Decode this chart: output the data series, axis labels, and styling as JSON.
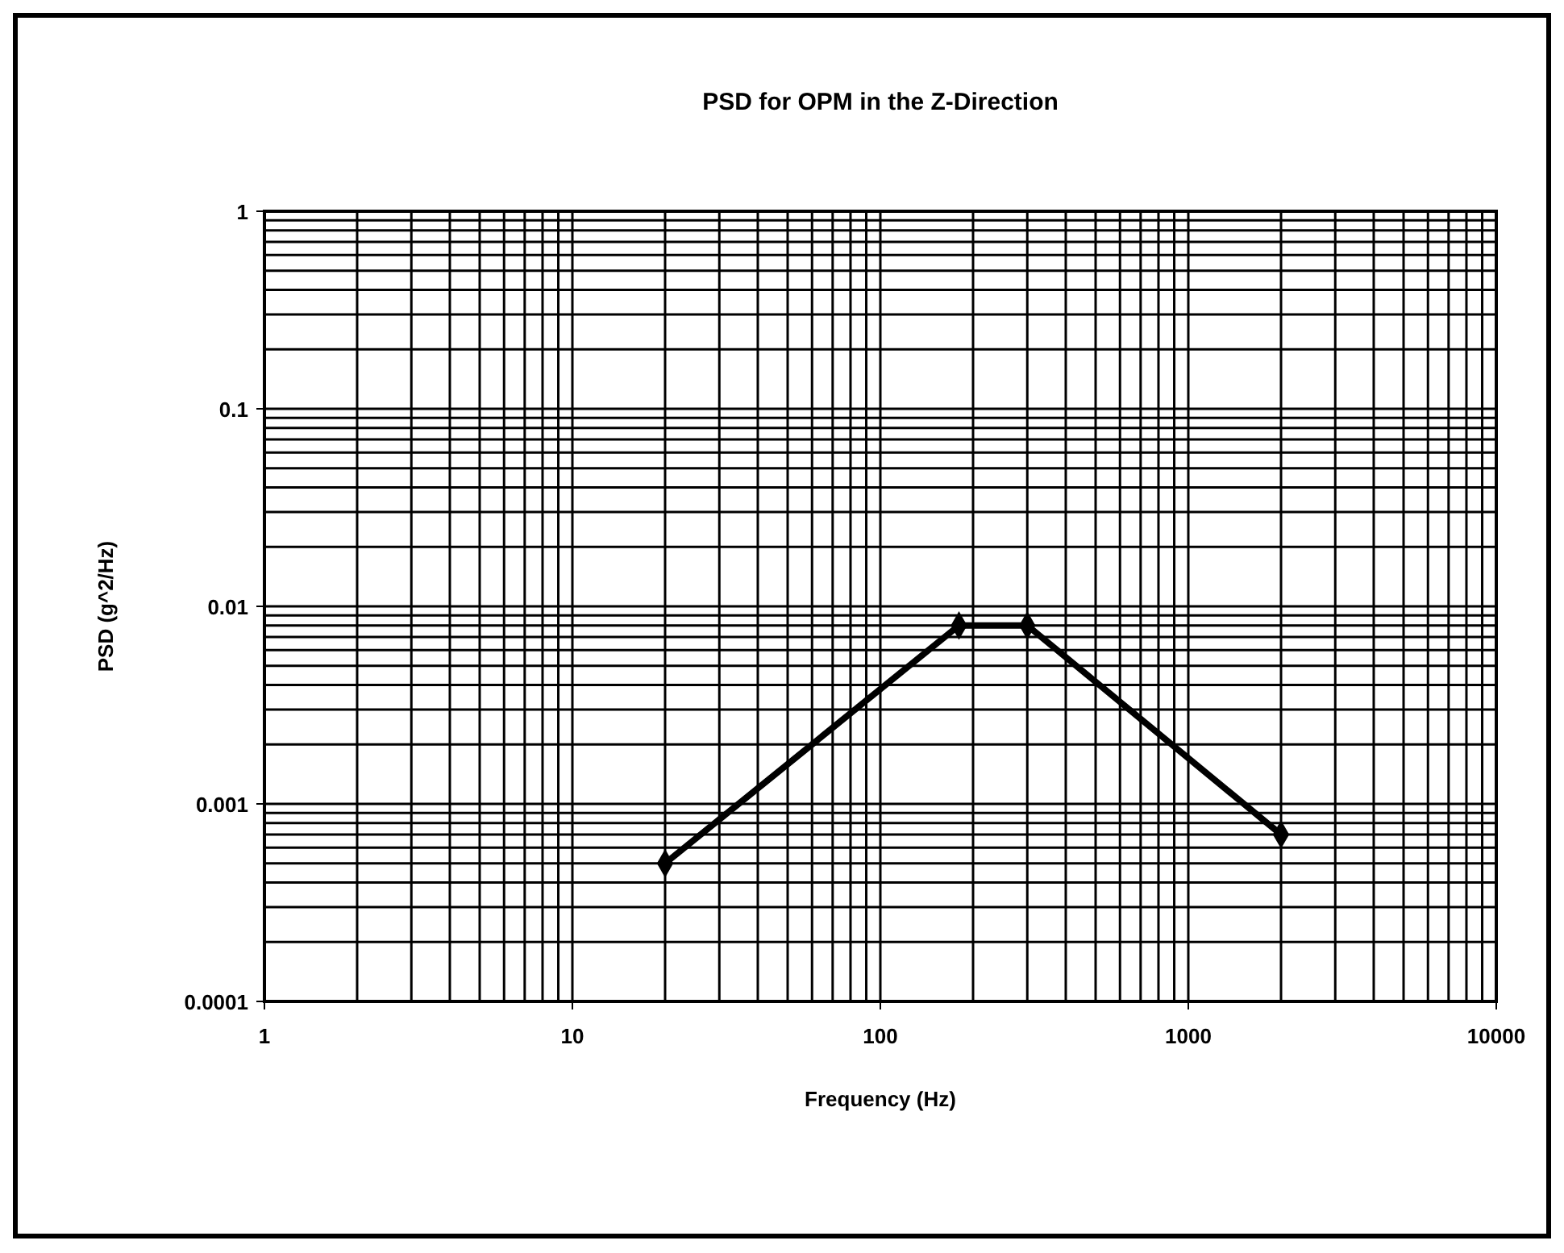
{
  "chart_data": {
    "type": "line",
    "title": "PSD for OPM in the Z-Direction",
    "xlabel": "Frequency (Hz)",
    "ylabel": "PSD (g^2/Hz)",
    "log": "xy",
    "grid": true,
    "marker": "diamond",
    "line_style": "solid",
    "x": [
      20,
      180,
      300,
      2000
    ],
    "series": [
      {
        "color": "#000000",
        "values": [
          0.0005,
          0.008,
          0.008,
          0.0007
        ]
      }
    ],
    "xlim": [
      1,
      10000
    ],
    "xticks": [
      1,
      10,
      100,
      1000,
      10000
    ],
    "ylim": [
      0.0001,
      1
    ],
    "yticks": [
      0.0001,
      0.001,
      0.01,
      0.1,
      1
    ]
  }
}
